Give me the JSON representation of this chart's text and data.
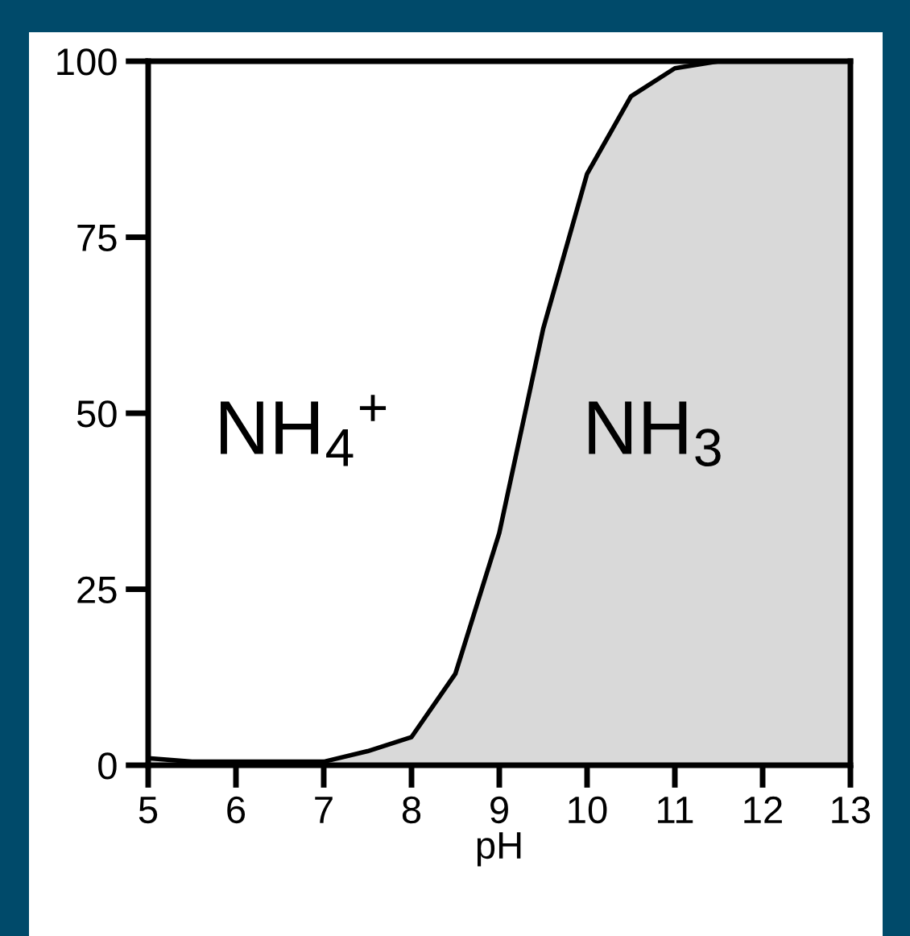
{
  "chart_data": {
    "type": "area",
    "xlabel": "pH",
    "x": [
      5,
      5.5,
      6,
      6.5,
      7,
      7.5,
      8,
      8.5,
      9,
      9.5,
      10,
      10.5,
      11,
      11.5,
      12,
      12.5,
      13
    ],
    "series": [
      {
        "color": "#d9d9d9",
        "values": [
          1,
          0.5,
          0.5,
          0.5,
          0.5,
          2,
          4,
          13,
          33,
          62,
          84,
          95,
          99,
          100,
          100,
          100,
          100
        ]
      }
    ],
    "xlim": [
      5,
      13
    ],
    "xticks": [
      5,
      6,
      7,
      8,
      9,
      10,
      11,
      12,
      13
    ],
    "ylim": [
      0,
      100
    ],
    "yticks": [
      0,
      25,
      50,
      75,
      100
    ],
    "annotations": [
      "NH$_{4}$$^{+}$",
      "NH$_{3}$"
    ],
    "grid": false,
    "legend": false
  }
}
